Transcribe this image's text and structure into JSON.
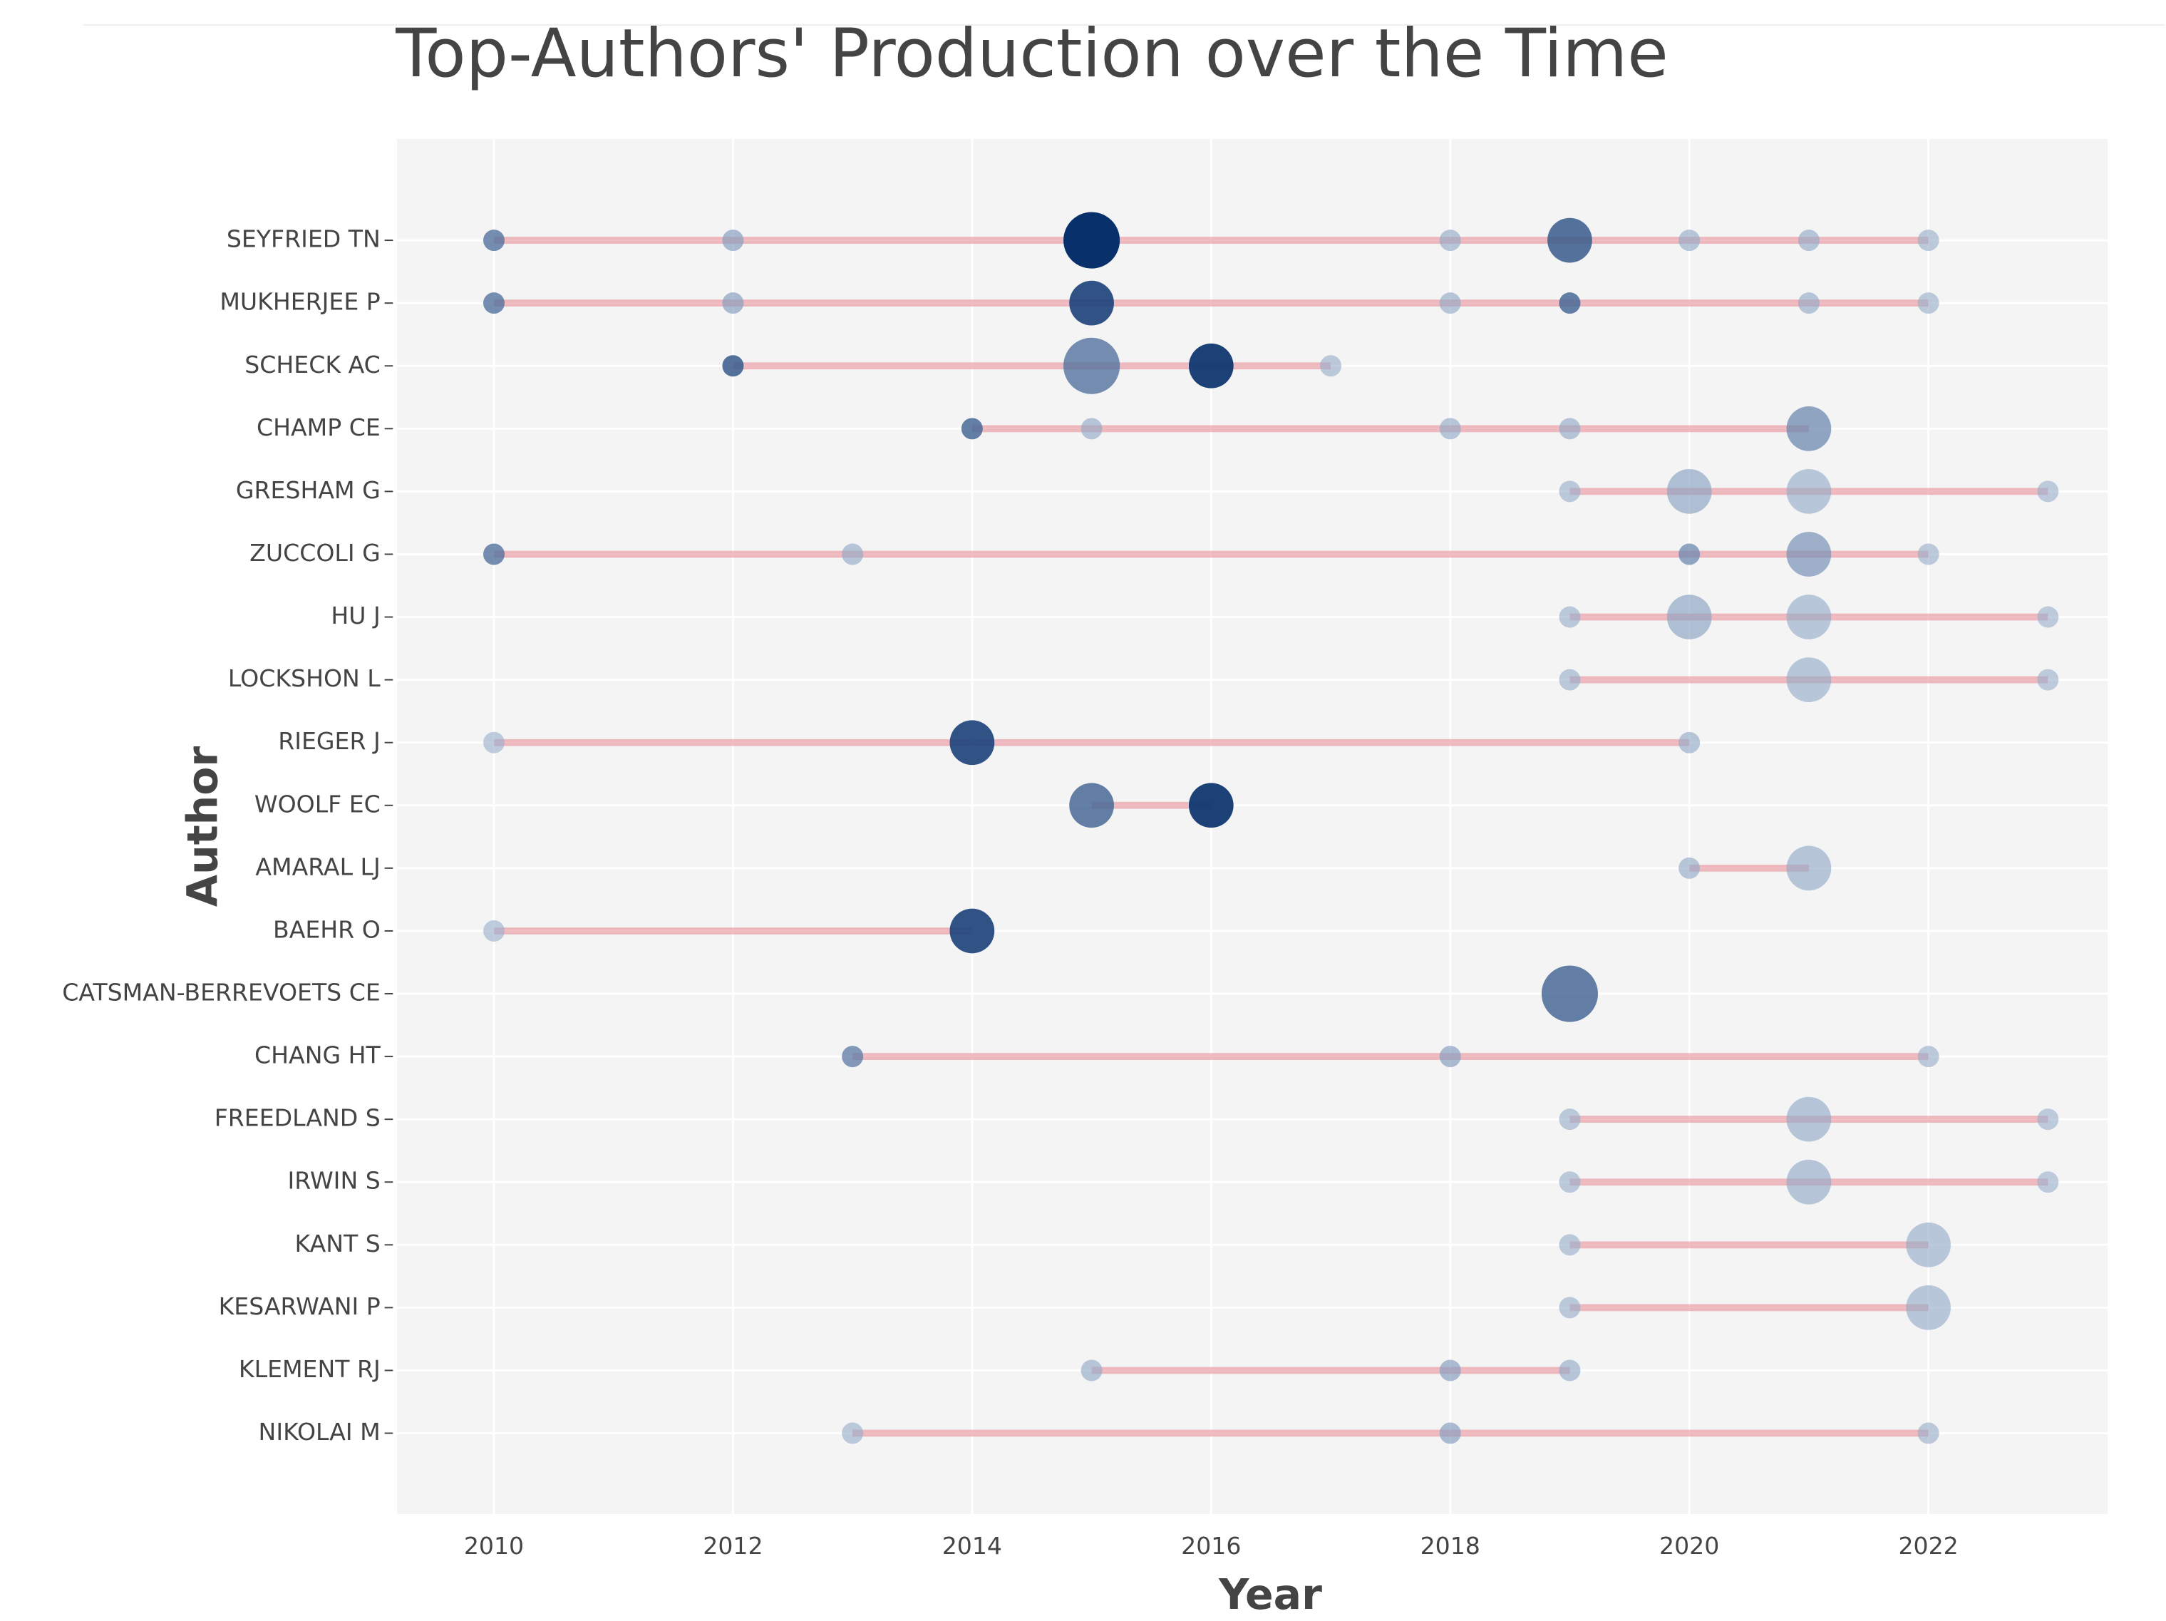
{
  "chart_data": {
    "type": "timeline",
    "title": "Top-Authors' Production over the Time",
    "x_label": "Year",
    "y_label": "Author",
    "xlim": [
      2009.19,
      2023.5
    ],
    "xticks": [
      2010,
      2012,
      2014,
      2016,
      2018,
      2020,
      2022
    ],
    "grid": true,
    "line_color": "#e88f98",
    "color_low": "#9db3cf",
    "color_high": "#08306b",
    "series": [
      {
        "name": "SEYFRIED TN",
        "years": [
          2010,
          2012,
          2015,
          2018,
          2019,
          2020,
          2021,
          2022
        ],
        "articles": [
          1,
          1,
          4,
          1,
          3,
          1,
          1,
          1
        ],
        "tc_per_year": [
          30,
          10,
          60,
          5,
          40,
          5,
          5,
          3
        ]
      },
      {
        "name": "MUKHERJEE P",
        "years": [
          2010,
          2012,
          2015,
          2018,
          2019,
          2021,
          2022
        ],
        "articles": [
          1,
          1,
          3,
          1,
          1,
          1,
          1
        ],
        "tc_per_year": [
          30,
          10,
          50,
          5,
          35,
          5,
          3
        ]
      },
      {
        "name": "SCHECK AC",
        "years": [
          2012,
          2015,
          2016,
          2017
        ],
        "articles": [
          1,
          4,
          3,
          1
        ],
        "tc_per_year": [
          40,
          30,
          55,
          3
        ]
      },
      {
        "name": "CHAMP CE",
        "years": [
          2014,
          2015,
          2018,
          2019,
          2021
        ],
        "articles": [
          1,
          1,
          1,
          1,
          3
        ],
        "tc_per_year": [
          35,
          5,
          5,
          5,
          20
        ]
      },
      {
        "name": "GRESHAM G",
        "years": [
          2019,
          2020,
          2021,
          2023
        ],
        "articles": [
          1,
          3,
          3,
          1
        ],
        "tc_per_year": [
          3,
          8,
          4,
          2
        ]
      },
      {
        "name": "ZUCCOLI G",
        "years": [
          2010,
          2013,
          2020,
          2021,
          2022
        ],
        "articles": [
          1,
          1,
          1,
          3,
          1
        ],
        "tc_per_year": [
          30,
          5,
          20,
          15,
          3
        ]
      },
      {
        "name": "HU J",
        "years": [
          2019,
          2020,
          2021,
          2023
        ],
        "articles": [
          1,
          3,
          3,
          1
        ],
        "tc_per_year": [
          3,
          8,
          4,
          2
        ]
      },
      {
        "name": "LOCKSHON L",
        "years": [
          2019,
          2021,
          2023
        ],
        "articles": [
          1,
          3,
          1
        ],
        "tc_per_year": [
          3,
          4,
          2
        ]
      },
      {
        "name": "RIEGER J",
        "years": [
          2010,
          2014,
          2020
        ],
        "articles": [
          1,
          3,
          1
        ],
        "tc_per_year": [
          2,
          50,
          5
        ]
      },
      {
        "name": "WOOLF EC",
        "years": [
          2015,
          2016
        ],
        "articles": [
          3,
          3
        ],
        "tc_per_year": [
          35,
          55
        ]
      },
      {
        "name": "AMARAL LJ",
        "years": [
          2020,
          2021
        ],
        "articles": [
          1,
          3
        ],
        "tc_per_year": [
          5,
          5
        ]
      },
      {
        "name": "BAEHR O",
        "years": [
          2010,
          2014
        ],
        "articles": [
          1,
          3
        ],
        "tc_per_year": [
          2,
          50
        ]
      },
      {
        "name": "CATSMAN-BERREVOETS CE",
        "years": [
          2019
        ],
        "articles": [
          4
        ],
        "tc_per_year": [
          35
        ]
      },
      {
        "name": "CHANG HT",
        "years": [
          2013,
          2018,
          2022
        ],
        "articles": [
          1,
          1,
          1
        ],
        "tc_per_year": [
          25,
          10,
          3
        ]
      },
      {
        "name": "FREEDLAND S",
        "years": [
          2019,
          2021,
          2023
        ],
        "articles": [
          1,
          3,
          1
        ],
        "tc_per_year": [
          3,
          5,
          2
        ]
      },
      {
        "name": "IRWIN S",
        "years": [
          2019,
          2021,
          2023
        ],
        "articles": [
          1,
          3,
          1
        ],
        "tc_per_year": [
          3,
          5,
          2
        ]
      },
      {
        "name": "KANT S",
        "years": [
          2019,
          2022
        ],
        "articles": [
          1,
          3
        ],
        "tc_per_year": [
          3,
          4
        ]
      },
      {
        "name": "KESARWANI P",
        "years": [
          2019,
          2022
        ],
        "articles": [
          1,
          3
        ],
        "tc_per_year": [
          3,
          4
        ]
      },
      {
        "name": "KLEMENT RJ",
        "years": [
          2015,
          2018,
          2019
        ],
        "articles": [
          1,
          1,
          1
        ],
        "tc_per_year": [
          5,
          10,
          5
        ]
      },
      {
        "name": "NIKOLAI M",
        "years": [
          2013,
          2018,
          2022
        ],
        "articles": [
          1,
          1,
          1
        ],
        "tc_per_year": [
          3,
          10,
          3
        ]
      }
    ]
  }
}
